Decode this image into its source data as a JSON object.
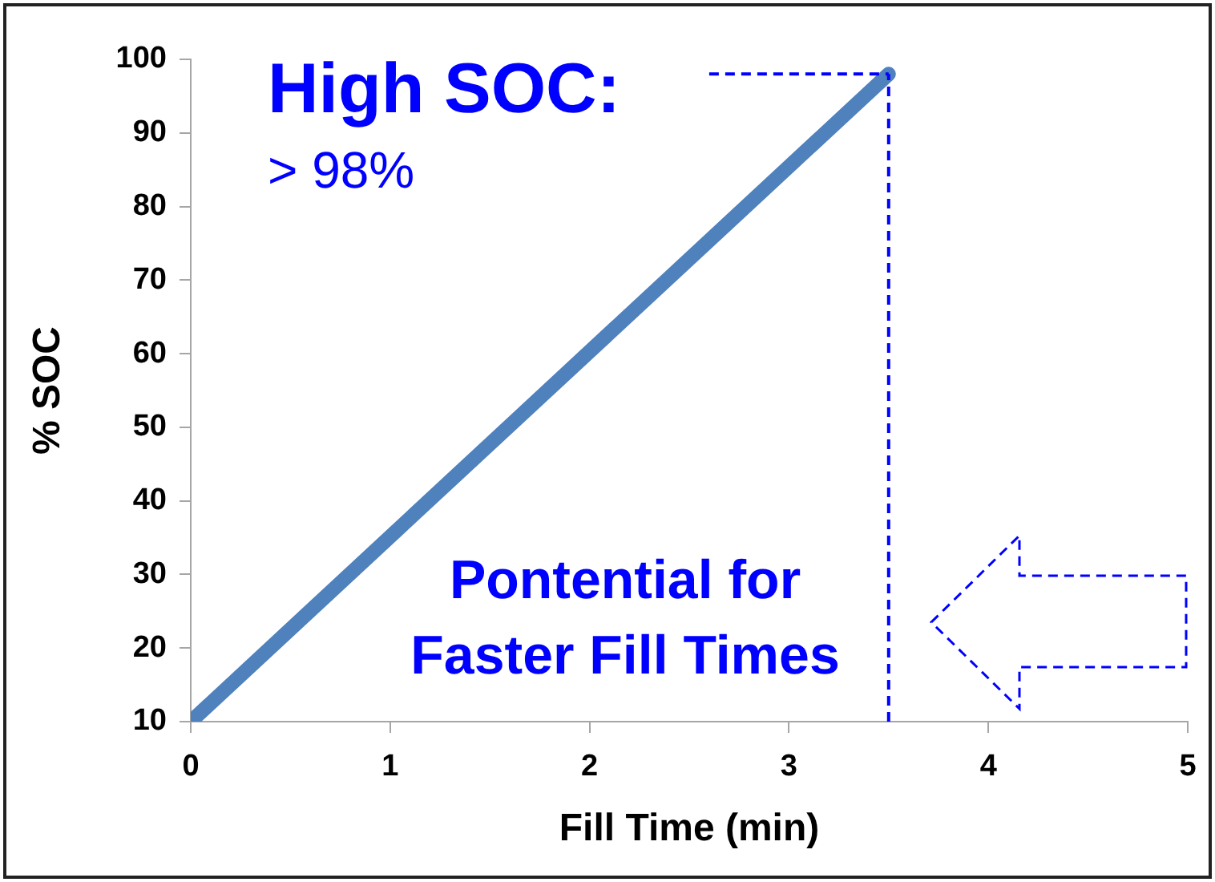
{
  "chart_data": {
    "type": "line",
    "xlabel": "Fill Time (min)",
    "ylabel": "% SOC",
    "x": [
      0,
      3.5
    ],
    "series": [
      {
        "color": "#4f81bd",
        "values": [
          10,
          98
        ]
      }
    ],
    "xlim": [
      0,
      5
    ],
    "xticks": [
      0,
      1,
      2,
      3,
      4,
      5
    ],
    "ylim": [
      10,
      100
    ],
    "yticks": [
      10,
      20,
      30,
      40,
      50,
      60,
      70,
      80,
      90,
      100
    ],
    "grid": false,
    "legend": false,
    "marker": "none",
    "line_style": "solid",
    "ref_lines": [
      {
        "axis": "x",
        "value": 3.5,
        "color": "#0000ff",
        "line_style": "dashed"
      },
      {
        "axis": "y",
        "value": 98,
        "color": "#0000ff",
        "line_style": "dashed"
      }
    ],
    "annotations": [
      "High SOC:",
      "> 98%",
      "Pontential for Faster Fill Times"
    ]
  }
}
